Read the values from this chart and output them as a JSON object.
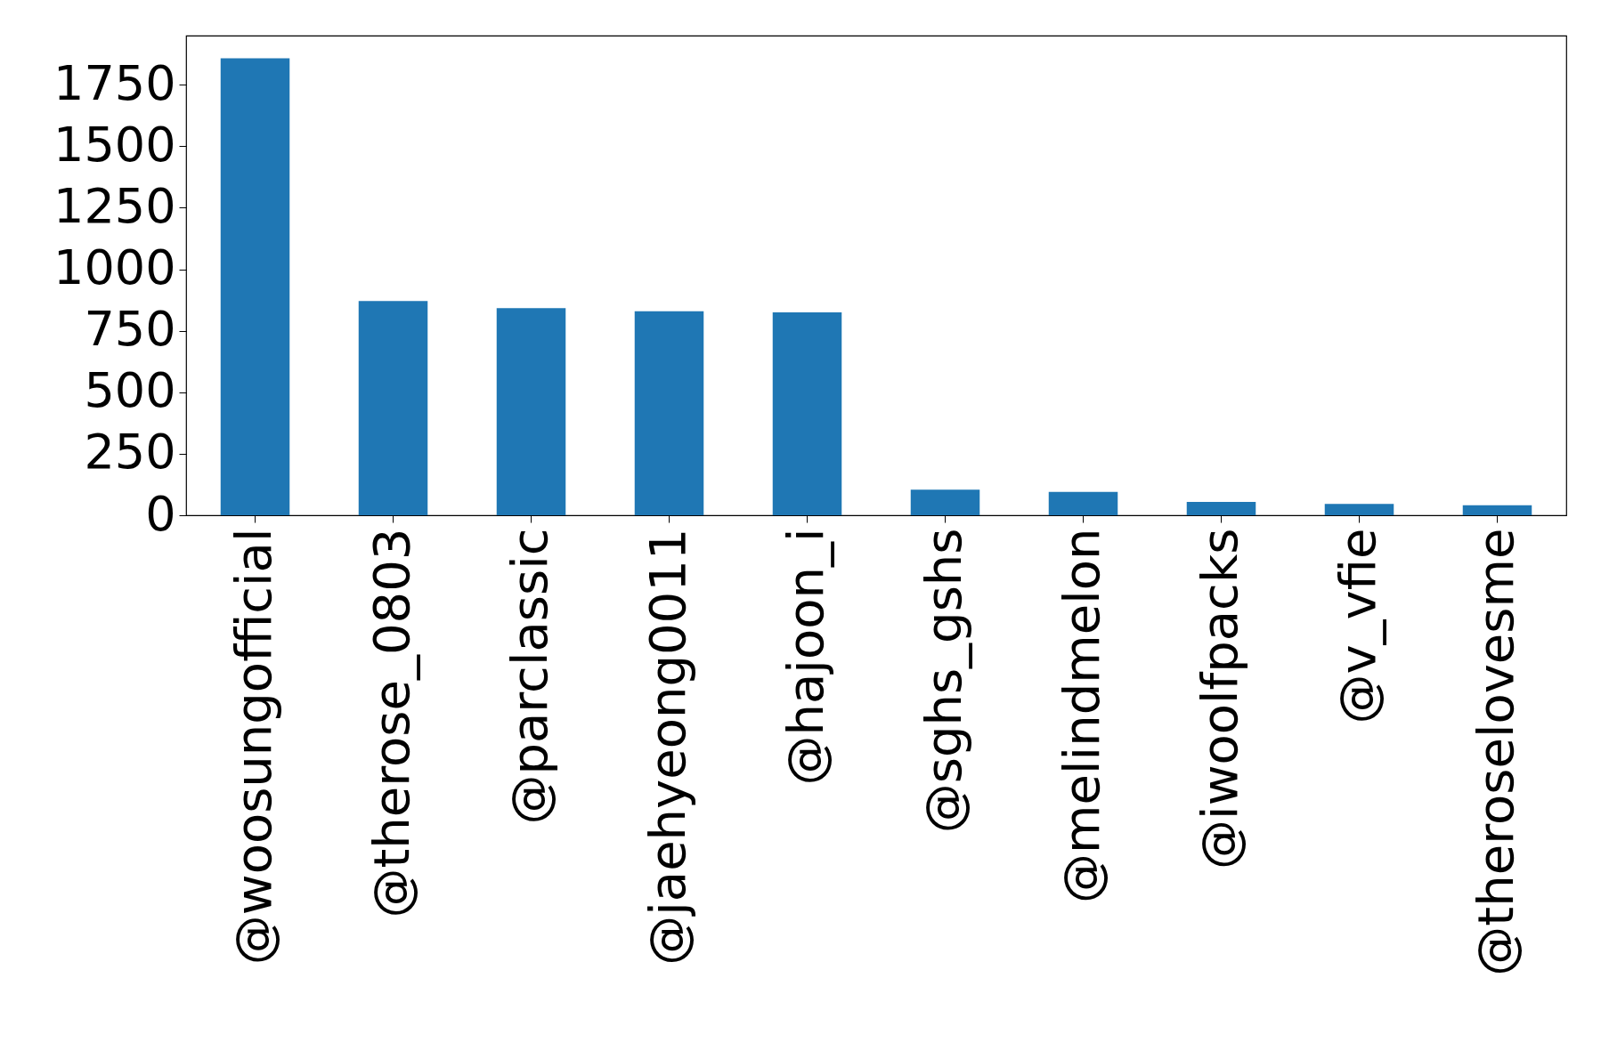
{
  "chart_data": {
    "type": "bar",
    "categories": [
      "@woosungofficial",
      "@therose_0803",
      "@parclassic",
      "@jaehyeong0011",
      "@hajoon_i",
      "@sghs_gshs",
      "@melindmelon",
      "@iwoolfpacks",
      "@v_vfie",
      "@theroselovesme"
    ],
    "values": [
      1858,
      871,
      842,
      829,
      825,
      104,
      95,
      54,
      46,
      41
    ],
    "color": "#1f77b4",
    "ylim": [
      0,
      1950
    ],
    "yticks": [
      0,
      250,
      500,
      750,
      1000,
      1250,
      1500,
      1750
    ],
    "grid": false
  }
}
